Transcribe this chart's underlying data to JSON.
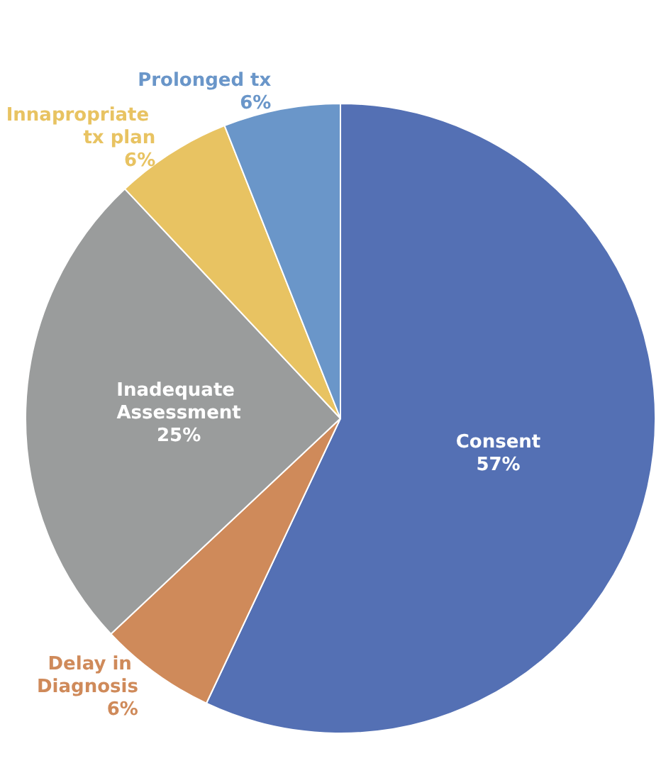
{
  "chart_data": {
    "type": "pie",
    "categories": [
      "Consent",
      "Delay in Diagnosis",
      "Inadequate Assessment",
      "Innapropriate tx plan",
      "Prolonged tx"
    ],
    "values": [
      57,
      6,
      25,
      6,
      6
    ],
    "value_labels": [
      "57%",
      "6%",
      "25%",
      "6%",
      "6%"
    ],
    "colors": [
      "#5470b4",
      "#cf8a5a",
      "#9a9c9c",
      "#e8c362",
      "#6a96c9"
    ],
    "legend": false
  }
}
